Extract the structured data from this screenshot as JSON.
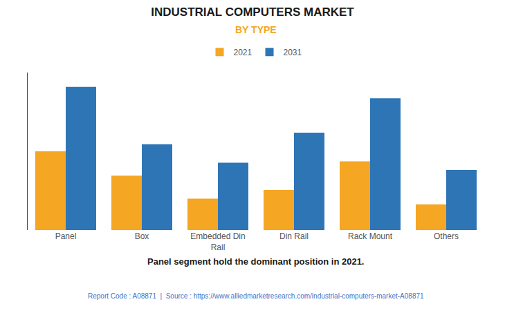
{
  "chart_data": {
    "type": "bar",
    "title": "INDUSTRIAL COMPUTERS MARKET",
    "subtitle": "BY TYPE",
    "categories": [
      "Panel",
      "Box",
      "Embedded Din\nRail",
      "Din Rail",
      "Rack Mount",
      "Others"
    ],
    "series": [
      {
        "name": "2021",
        "color": "#F5A623",
        "values": [
          55,
          38,
          22,
          28,
          48,
          18
        ]
      },
      {
        "name": "2031",
        "color": "#2E75B6",
        "values": [
          100,
          60,
          47,
          68,
          92,
          42
        ]
      }
    ],
    "ylim": [
      0,
      110
    ],
    "yticks": [],
    "grid": false,
    "tick_labels": "x",
    "legend": "top",
    "annotations": [
      "Panel segment hold the dominant position in 2021.",
      "Report Code : A08871  |  Source : https://www.alliedmarketresearch.com/industrial-computers-market-A08871"
    ]
  }
}
